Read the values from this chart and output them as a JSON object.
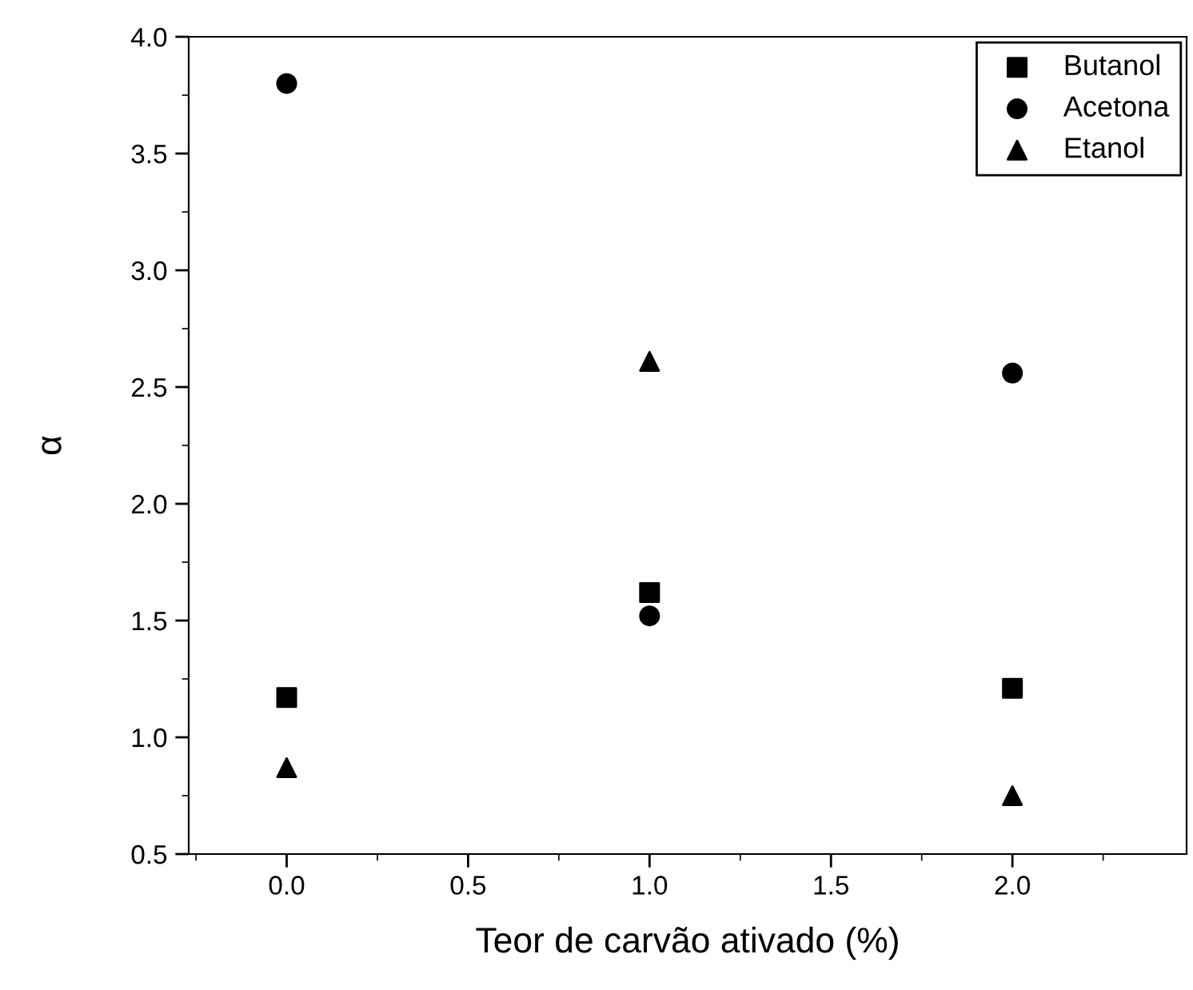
{
  "chart_data": {
    "type": "scatter",
    "xlabel": "Teor de carvão ativado (%)",
    "ylabel": "α",
    "x": [
      0.0,
      1.0,
      2.0
    ],
    "series": [
      {
        "name": "Butanol",
        "color": "#000000",
        "marker": "square",
        "values": [
          1.17,
          1.62,
          1.21
        ]
      },
      {
        "name": "Acetona",
        "color": "#000000",
        "marker": "circle",
        "values": [
          3.8,
          1.52,
          2.56
        ]
      },
      {
        "name": "Etanol",
        "color": "#000000",
        "marker": "triangle",
        "values": [
          0.87,
          2.61,
          0.75
        ]
      }
    ],
    "xlim": [
      -0.27,
      2.48
    ],
    "ylim": [
      0.5,
      4.0
    ],
    "xticks": [
      {
        "value": 0,
        "label": "0.0"
      },
      {
        "value": 0.5,
        "label": "0.5"
      },
      {
        "value": 1,
        "label": "1.0"
      },
      {
        "value": 1.5,
        "label": "1.5"
      },
      {
        "value": 2,
        "label": "2.0"
      }
    ],
    "yticks": [
      {
        "value": 0.5,
        "label": "0.5"
      },
      {
        "value": 1,
        "label": "1.0"
      },
      {
        "value": 1.5,
        "label": "1.5"
      },
      {
        "value": 2,
        "label": "2.0"
      },
      {
        "value": 2.5,
        "label": "2.5"
      },
      {
        "value": 3,
        "label": "3.0"
      },
      {
        "value": 3.5,
        "label": "3.5"
      },
      {
        "value": 4,
        "label": "4.0"
      }
    ],
    "grid": false,
    "legend": "top right"
  }
}
